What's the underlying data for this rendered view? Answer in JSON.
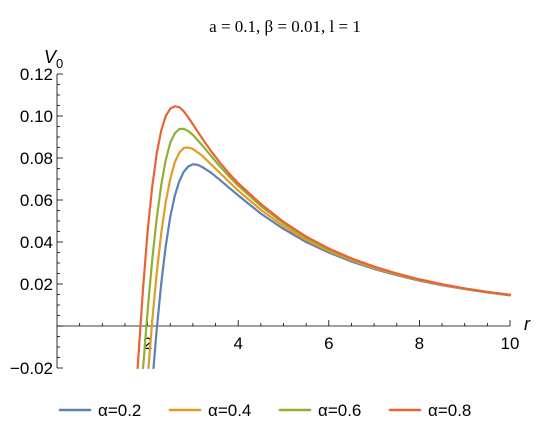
{
  "chart_data": {
    "type": "line",
    "title": "a = 0.1, β = 0.01, l = 1",
    "xlabel": "r",
    "ylabel_main": "V",
    "ylabel_sub": "0",
    "xlim": [
      0,
      10
    ],
    "ylim": [
      -0.02,
      0.12
    ],
    "x_ticks": [
      {
        "value": 2,
        "label": "2"
      },
      {
        "value": 4,
        "label": "4"
      },
      {
        "value": 6,
        "label": "6"
      },
      {
        "value": 8,
        "label": "8"
      },
      {
        "value": 10,
        "label": "10"
      }
    ],
    "y_ticks": [
      {
        "value": -0.02,
        "label": "-0.02"
      },
      {
        "value": 0.02,
        "label": "0.02"
      },
      {
        "value": 0.04,
        "label": "0.04"
      },
      {
        "value": 0.06,
        "label": "0.06"
      },
      {
        "value": 0.08,
        "label": "0.08"
      },
      {
        "value": 0.1,
        "label": "0.10"
      },
      {
        "value": 0.12,
        "label": "0.12"
      }
    ],
    "grid": false,
    "legend_position": "bottom",
    "series": [
      {
        "name": "α=0.2",
        "color": "#5e81b5",
        "x": [
          2.13,
          2.2,
          2.3,
          2.4,
          2.5,
          2.6,
          2.7,
          2.8,
          2.9,
          3.0,
          3.1,
          3.2,
          3.4,
          3.6,
          3.8,
          4.0,
          4.5,
          5.0,
          5.5,
          6.0,
          6.5,
          7.0,
          7.5,
          8.0,
          8.5,
          9.0,
          9.5,
          10.0
        ],
        "y": [
          -0.02,
          -0.002,
          0.02,
          0.038,
          0.052,
          0.062,
          0.069,
          0.0735,
          0.076,
          0.077,
          0.0768,
          0.0758,
          0.073,
          0.0695,
          0.0658,
          0.0622,
          0.0535,
          0.0462,
          0.04,
          0.035,
          0.0307,
          0.0272,
          0.0242,
          0.0216,
          0.0194,
          0.0176,
          0.016,
          0.0146
        ]
      },
      {
        "name": "α=0.4",
        "color": "#e19c24",
        "x": [
          2.02,
          2.1,
          2.2,
          2.3,
          2.4,
          2.5,
          2.6,
          2.7,
          2.8,
          2.9,
          3.0,
          3.2,
          3.4,
          3.6,
          3.8,
          4.0,
          4.5,
          5.0,
          5.5,
          6.0,
          6.5,
          7.0,
          7.5,
          8.0,
          8.5,
          9.0,
          9.5,
          10.0
        ],
        "y": [
          -0.02,
          0.002,
          0.025,
          0.044,
          0.059,
          0.07,
          0.078,
          0.0825,
          0.0848,
          0.085,
          0.0843,
          0.0812,
          0.077,
          0.0728,
          0.0686,
          0.0645,
          0.0553,
          0.0475,
          0.041,
          0.0357,
          0.0313,
          0.0276,
          0.0245,
          0.0219,
          0.0196,
          0.0177,
          0.0161,
          0.0147
        ]
      },
      {
        "name": "α=0.6",
        "color": "#8fb032",
        "x": [
          1.9,
          2.0,
          2.1,
          2.2,
          2.3,
          2.4,
          2.5,
          2.6,
          2.7,
          2.8,
          2.9,
          3.0,
          3.2,
          3.4,
          3.6,
          3.8,
          4.0,
          4.5,
          5.0,
          5.5,
          6.0,
          6.5,
          7.0,
          7.5,
          8.0,
          8.5,
          9.0,
          9.5,
          10.0
        ],
        "y": [
          -0.02,
          0.007,
          0.031,
          0.051,
          0.067,
          0.079,
          0.0872,
          0.0918,
          0.0938,
          0.0939,
          0.0928,
          0.091,
          0.0862,
          0.081,
          0.0759,
          0.0712,
          0.0668,
          0.0571,
          0.0489,
          0.042,
          0.0365,
          0.0319,
          0.0281,
          0.0249,
          0.0222,
          0.0198,
          0.0179,
          0.0162,
          0.0148
        ]
      },
      {
        "name": "α=0.8",
        "color": "#eb6235",
        "x": [
          1.78,
          1.9,
          2.0,
          2.1,
          2.2,
          2.3,
          2.4,
          2.5,
          2.6,
          2.7,
          2.8,
          2.9,
          3.0,
          3.2,
          3.4,
          3.6,
          3.8,
          4.0,
          4.5,
          5.0,
          5.5,
          6.0,
          6.5,
          7.0,
          7.5,
          8.0,
          8.5,
          9.0,
          9.5,
          10.0
        ],
        "y": [
          -0.02,
          0.018,
          0.045,
          0.066,
          0.082,
          0.093,
          0.1,
          0.1035,
          0.1046,
          0.1042,
          0.1022,
          0.0993,
          0.096,
          0.0895,
          0.0833,
          0.0777,
          0.0726,
          0.068,
          0.0581,
          0.0496,
          0.0426,
          0.0369,
          0.0322,
          0.0283,
          0.025,
          0.0222,
          0.0199,
          0.0179,
          0.0162,
          0.0149
        ]
      }
    ]
  }
}
